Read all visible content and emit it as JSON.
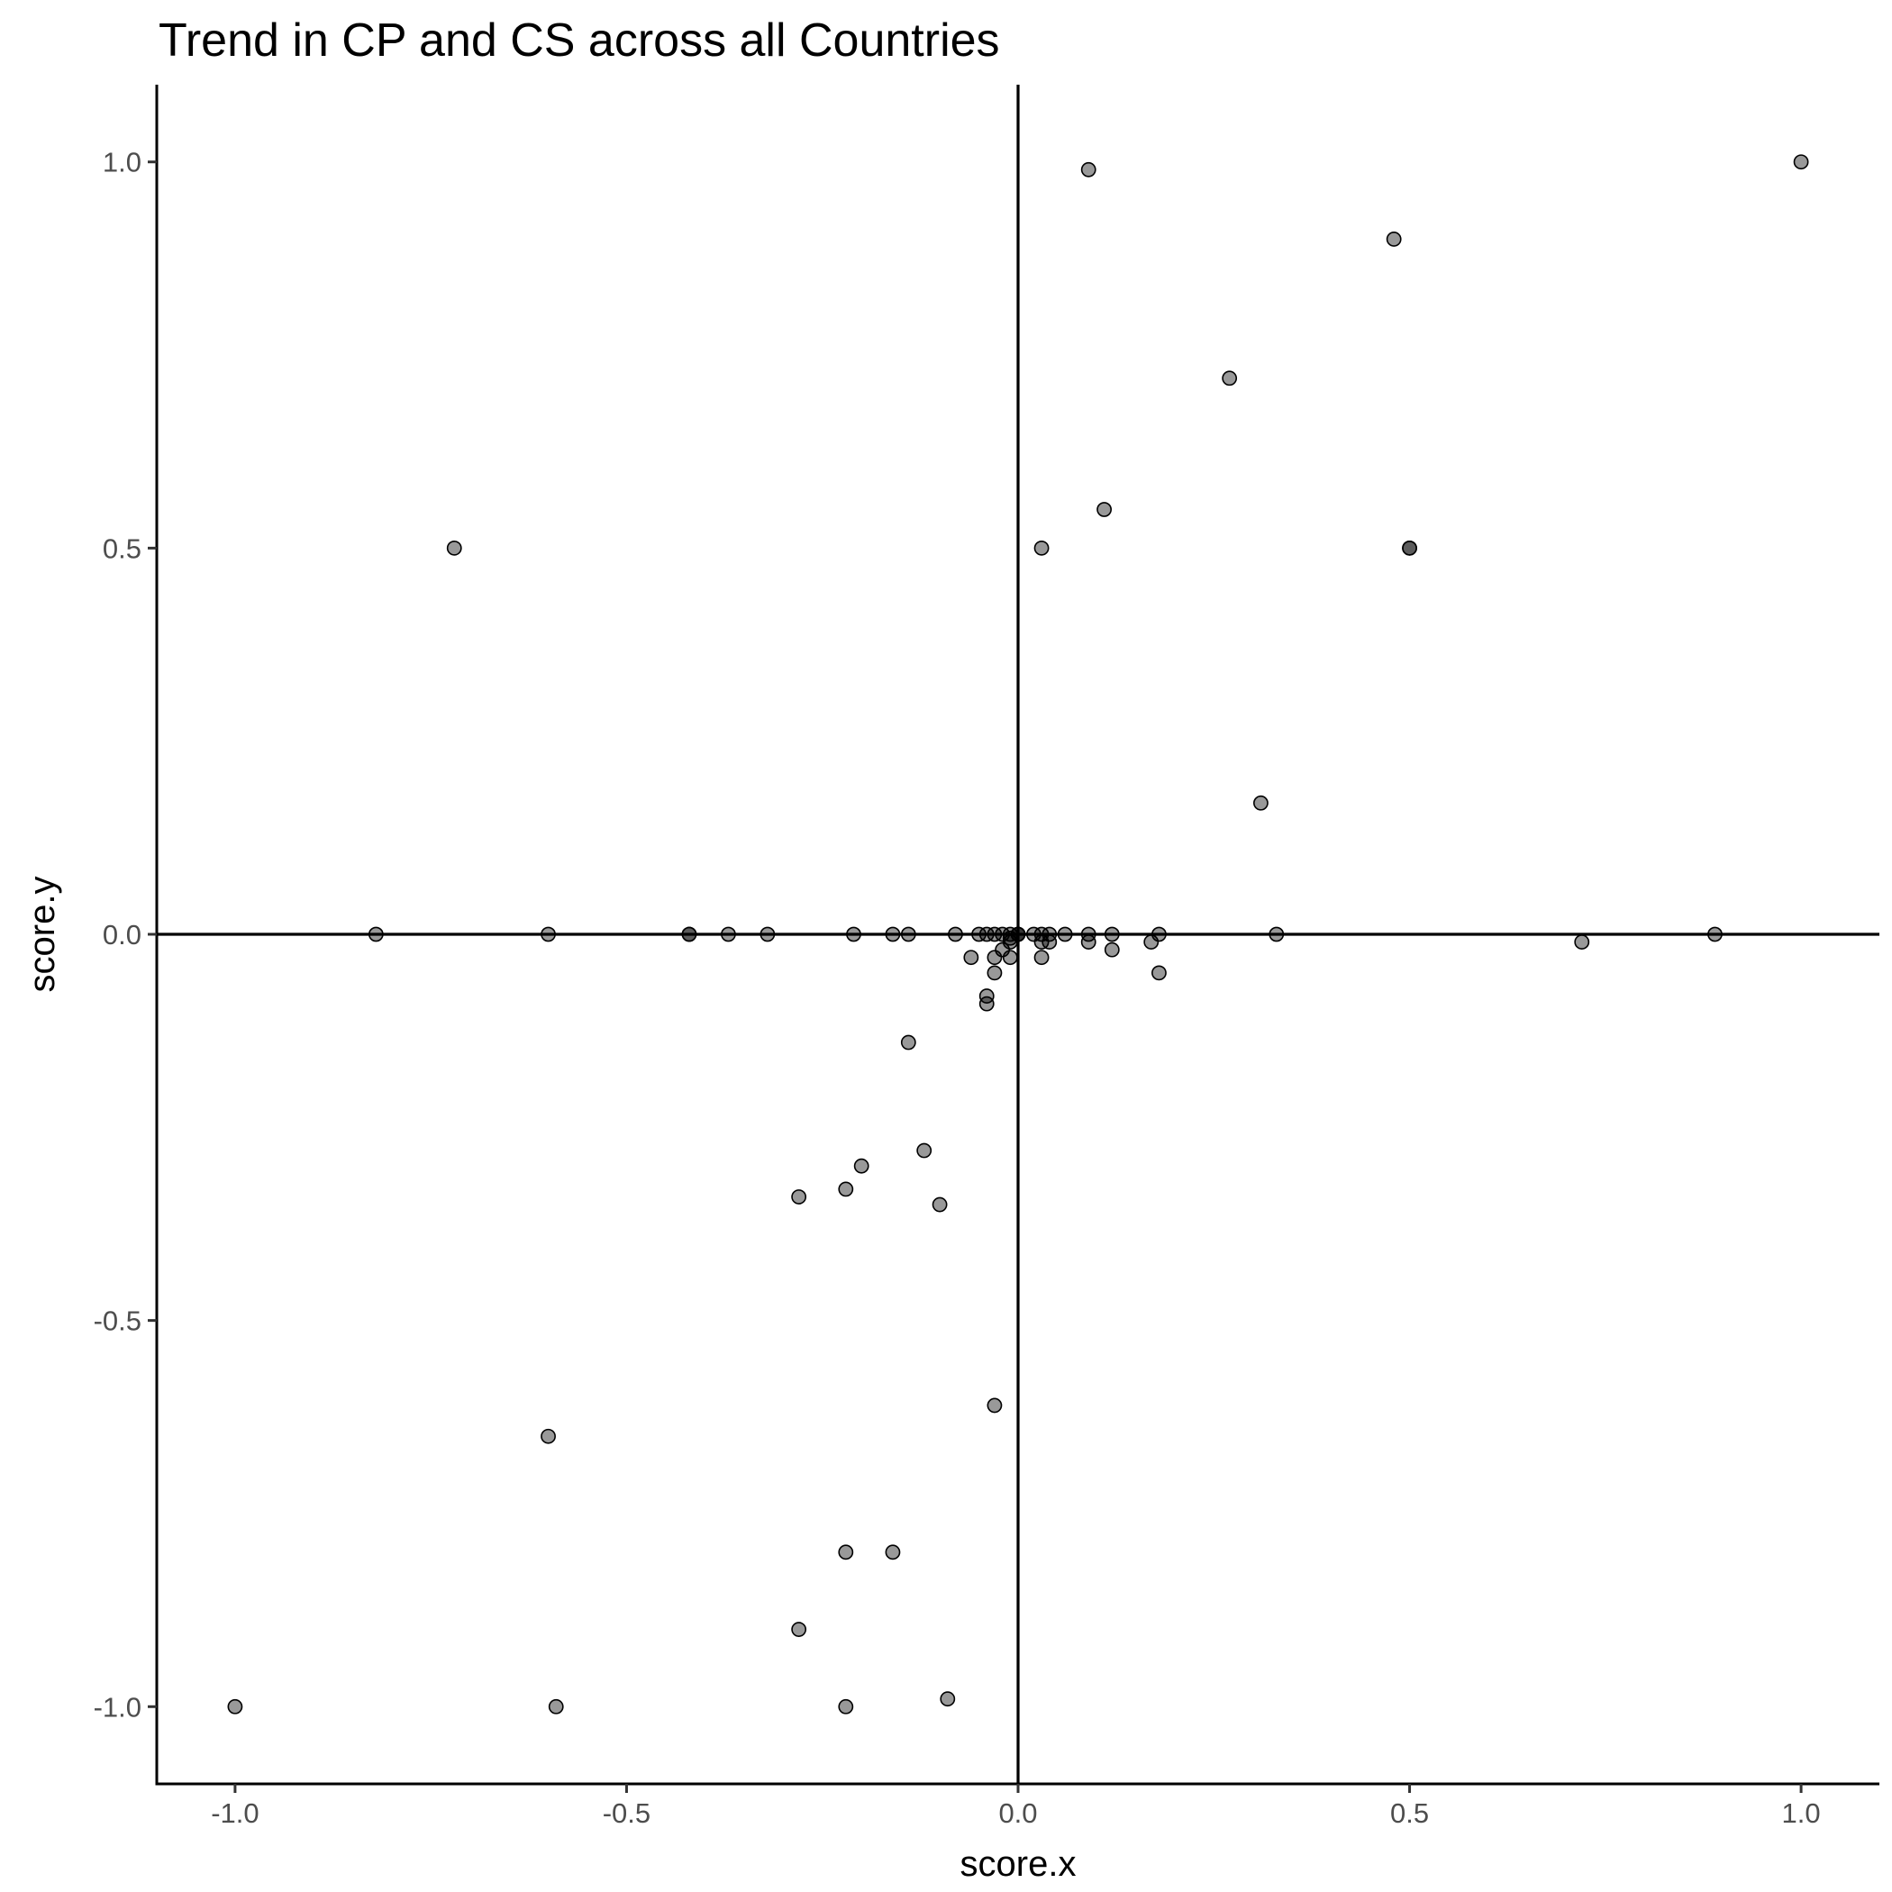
{
  "chart_data": {
    "type": "scatter",
    "title": "Trend in CP and CS across all Countries",
    "xlabel": "score.x",
    "ylabel": "score.y",
    "xlim": [
      -1.1,
      1.1
    ],
    "ylim": [
      -1.1,
      1.1
    ],
    "xticks": [
      -1.0,
      -0.5,
      0.0,
      0.5,
      1.0
    ],
    "yticks": [
      -1.0,
      -0.5,
      0.0,
      0.5,
      1.0
    ],
    "x_tick_labels": [
      "-1.0",
      "-0.5",
      "0.0",
      "0.5",
      "1.0"
    ],
    "y_tick_labels": [
      "-1.0",
      "-0.5",
      "0.0",
      "0.5",
      "1.0"
    ],
    "grid": false,
    "reference_lines": {
      "x": 0,
      "y": 0
    },
    "point_color": "#000000",
    "point_opacity": 0.4,
    "points": [
      {
        "x": 0.09,
        "y": 0.99
      },
      {
        "x": 1.0,
        "y": 1.0
      },
      {
        "x": 0.48,
        "y": 0.9
      },
      {
        "x": 0.27,
        "y": 0.72
      },
      {
        "x": 0.11,
        "y": 0.55
      },
      {
        "x": 0.03,
        "y": 0.5
      },
      {
        "x": -0.72,
        "y": 0.5
      },
      {
        "x": 0.5,
        "y": 0.5
      },
      {
        "x": 0.5,
        "y": 0.5
      },
      {
        "x": 0.31,
        "y": 0.17
      },
      {
        "x": -0.82,
        "y": 0.0
      },
      {
        "x": -0.6,
        "y": 0.0
      },
      {
        "x": -0.42,
        "y": 0.0
      },
      {
        "x": -0.42,
        "y": 0.0
      },
      {
        "x": -0.37,
        "y": 0.0
      },
      {
        "x": -0.32,
        "y": 0.0
      },
      {
        "x": -0.21,
        "y": 0.0
      },
      {
        "x": -0.16,
        "y": 0.0
      },
      {
        "x": -0.14,
        "y": 0.0
      },
      {
        "x": -0.08,
        "y": 0.0
      },
      {
        "x": -0.05,
        "y": 0.0
      },
      {
        "x": -0.04,
        "y": 0.0
      },
      {
        "x": -0.03,
        "y": 0.0
      },
      {
        "x": -0.02,
        "y": 0.0
      },
      {
        "x": -0.01,
        "y": 0.0
      },
      {
        "x": 0.0,
        "y": 0.0
      },
      {
        "x": 0.0,
        "y": 0.0
      },
      {
        "x": 0.0,
        "y": 0.0
      },
      {
        "x": 0.02,
        "y": 0.0
      },
      {
        "x": 0.03,
        "y": 0.0
      },
      {
        "x": 0.04,
        "y": 0.0
      },
      {
        "x": 0.06,
        "y": 0.0
      },
      {
        "x": 0.09,
        "y": 0.0
      },
      {
        "x": 0.12,
        "y": 0.0
      },
      {
        "x": 0.18,
        "y": 0.0
      },
      {
        "x": 0.33,
        "y": 0.0
      },
      {
        "x": 0.89,
        "y": 0.0
      },
      {
        "x": 0.72,
        "y": -0.01
      },
      {
        "x": 0.17,
        "y": -0.01
      },
      {
        "x": 0.09,
        "y": -0.01
      },
      {
        "x": 0.04,
        "y": -0.01
      },
      {
        "x": 0.03,
        "y": -0.01
      },
      {
        "x": -0.01,
        "y": -0.01
      },
      {
        "x": -0.01,
        "y": -0.005
      },
      {
        "x": 0.12,
        "y": -0.02
      },
      {
        "x": -0.02,
        "y": -0.02
      },
      {
        "x": -0.06,
        "y": -0.03
      },
      {
        "x": -0.03,
        "y": -0.03
      },
      {
        "x": 0.03,
        "y": -0.03
      },
      {
        "x": -0.01,
        "y": -0.03
      },
      {
        "x": -0.03,
        "y": -0.05
      },
      {
        "x": 0.18,
        "y": -0.05
      },
      {
        "x": -0.04,
        "y": -0.08
      },
      {
        "x": -0.04,
        "y": -0.09
      },
      {
        "x": -0.14,
        "y": -0.14
      },
      {
        "x": -0.12,
        "y": -0.28
      },
      {
        "x": -0.2,
        "y": -0.3
      },
      {
        "x": -0.22,
        "y": -0.33
      },
      {
        "x": -0.28,
        "y": -0.34
      },
      {
        "x": -0.1,
        "y": -0.35
      },
      {
        "x": -0.03,
        "y": -0.61
      },
      {
        "x": -0.6,
        "y": -0.65
      },
      {
        "x": -0.22,
        "y": -0.8
      },
      {
        "x": -0.16,
        "y": -0.8
      },
      {
        "x": -0.28,
        "y": -0.9
      },
      {
        "x": -1.0,
        "y": -1.0
      },
      {
        "x": -0.59,
        "y": -1.0
      },
      {
        "x": -0.22,
        "y": -1.0
      },
      {
        "x": -0.09,
        "y": -0.99
      }
    ]
  }
}
